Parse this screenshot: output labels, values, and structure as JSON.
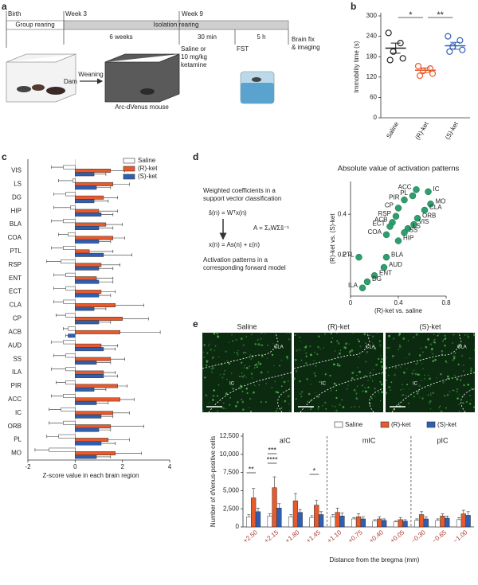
{
  "panel_labels": [
    "a",
    "b",
    "c",
    "d",
    "e"
  ],
  "timeline": {
    "markers": [
      "Birth",
      "Week 3",
      "Week 9"
    ],
    "phases": [
      "Group rearing",
      "Isolation rearing"
    ],
    "durations": [
      "6 weeks",
      "30 min",
      "5 h"
    ],
    "steps": [
      [
        "Saline or",
        "10 mg/kg",
        "ketamine"
      ],
      [
        "FST"
      ],
      [
        "Brain fix",
        "& imaging"
      ]
    ],
    "illustration": [
      "Weaning",
      "Dam",
      "Arc-dVenus mouse"
    ]
  },
  "model": {
    "lines": [
      "Weighted coefficients in a",
      "support vector classification",
      "ŝ(n) = Wᵀx(n)",
      "A = ΣₓWΣŝ⁻¹",
      "x(n) = As(n) + ε(n)",
      "Activation patterns in a",
      "corresponding forward model"
    ]
  },
  "images": {
    "titles": [
      "Saline",
      "(R)-ket",
      "(S)-ket"
    ],
    "regions": [
      "CLA",
      "IC"
    ]
  },
  "chart_data": [
    {
      "type": "dot",
      "ylabel": "Immobility time (s)",
      "categories": [
        "Saline",
        "(R)-ket",
        "(S)-ket"
      ],
      "colors": [
        "#222222",
        "#e8592b",
        "#2f5fb3"
      ],
      "values": [
        205,
        140,
        212
      ],
      "errors": [
        15,
        7,
        10
      ],
      "points": [
        [
          250,
          220,
          195,
          175,
          170
        ],
        [
          152,
          145,
          138,
          130,
          124
        ],
        [
          240,
          228,
          210,
          200,
          195
        ]
      ],
      "ylim": [
        0,
        300
      ],
      "yticks": [
        0,
        60,
        120,
        180,
        240,
        300
      ],
      "annotations": [
        "*",
        "**"
      ]
    },
    {
      "type": "bar",
      "orientation": "horizontal",
      "xlabel": "Z-score value in each brain region",
      "categories": [
        "VIS",
        "LS",
        "DG",
        "HIP",
        "BLA",
        "COA",
        "PTL",
        "RSP",
        "ENT",
        "ECT",
        "CLA",
        "CP",
        "ACB",
        "AUD",
        "SS",
        "ILA",
        "PIR",
        "ACC",
        "IC",
        "ORB",
        "PL",
        "MO"
      ],
      "series": [
        {
          "name": "Saline",
          "color": "#ffffff",
          "values": [
            -0.5,
            -0.1,
            -0.4,
            -0.2,
            -0.5,
            -0.3,
            -0.5,
            -0.6,
            -0.4,
            -0.4,
            -0.5,
            -0.4,
            -0.3,
            -0.5,
            -0.4,
            -0.4,
            -0.4,
            -0.5,
            -0.6,
            -0.5,
            -0.7,
            -1.1
          ],
          "errors": [
            0.5,
            0.6,
            0.5,
            0.7,
            0.5,
            0.4,
            0.5,
            0.6,
            0.5,
            0.5,
            0.4,
            0.4,
            0.2,
            0.5,
            0.5,
            0.6,
            0.4,
            0.5,
            0.5,
            0.6,
            0.5,
            0.6
          ]
        },
        {
          "name": "(R)-ket",
          "color": "#e8592b",
          "values": [
            1.5,
            1.6,
            1.2,
            1.0,
            1.3,
            1.6,
            0.6,
            1.1,
            0.9,
            1.1,
            1.7,
            2.0,
            1.9,
            1.1,
            1.5,
            1.2,
            1.8,
            1.9,
            1.6,
            1.5,
            1.4,
            1.7
          ],
          "errors": [
            0.6,
            0.7,
            0.6,
            0.8,
            0.7,
            0.5,
            1.0,
            0.8,
            0.7,
            0.6,
            1.2,
            1.1,
            1.7,
            0.7,
            0.6,
            0.5,
            0.4,
            0.6,
            0.7,
            1.4,
            0.9,
            1.1
          ]
        },
        {
          "name": "(S)-ket",
          "color": "#2f5fb3",
          "values": [
            0.8,
            0.9,
            0.8,
            1.1,
            1.0,
            1.0,
            1.2,
            1.0,
            1.0,
            1.0,
            0.8,
            1.0,
            -0.3,
            1.2,
            0.9,
            1.2,
            0.8,
            0.9,
            1.1,
            1.0,
            1.1,
            0.9
          ],
          "errors": [
            0.5,
            0.6,
            0.6,
            0.5,
            0.6,
            0.5,
            1.2,
            0.6,
            0.6,
            0.5,
            0.5,
            0.5,
            0.1,
            0.5,
            0.6,
            0.6,
            0.5,
            0.5,
            0.5,
            0.5,
            0.6,
            0.6
          ]
        }
      ],
      "xlim": [
        -2,
        4
      ],
      "xticks": [
        -2,
        0,
        2,
        4
      ],
      "legend": "upper right"
    },
    {
      "type": "scatter",
      "title": "Absolute value of activation patterns",
      "xlabel": "(R)-ket vs. saline",
      "ylabel": "(R)-ket vs. (S)-ket",
      "point_labels": [
        "ACC",
        "IC",
        "PL",
        "MO",
        "PIR",
        "CLA",
        "CP",
        "ORB",
        "RSP",
        "VIS",
        "ACB",
        "LS",
        "ECT",
        "SS",
        "COA",
        "HIP",
        "PTL",
        "BLA",
        "AUD",
        "ENT",
        "DG",
        "ILA"
      ],
      "x": [
        0.55,
        0.65,
        0.52,
        0.67,
        0.45,
        0.62,
        0.4,
        0.56,
        0.38,
        0.53,
        0.35,
        0.48,
        0.33,
        0.45,
        0.3,
        0.4,
        0.07,
        0.3,
        0.28,
        0.2,
        0.14,
        0.1
      ],
      "y": [
        0.52,
        0.51,
        0.49,
        0.45,
        0.47,
        0.42,
        0.43,
        0.38,
        0.39,
        0.35,
        0.36,
        0.33,
        0.34,
        0.31,
        0.3,
        0.27,
        0.19,
        0.19,
        0.14,
        0.1,
        0.07,
        0.04
      ],
      "color": "#2e9e6e",
      "xlim": [
        0,
        0.8
      ],
      "xticks": [
        0,
        0.4,
        0.8
      ],
      "ylim": [
        0,
        0.56
      ],
      "yticks": [
        0.2,
        0.4
      ]
    },
    {
      "type": "bar",
      "orientation": "vertical",
      "xlabel": "Distance from the bregma (mm)",
      "ylabel": "Number of dVenus-positive cells",
      "categories": [
        "+2.50",
        "+2.15",
        "+1.80",
        "+1.45",
        "+1.10",
        "+0.75",
        "+0.40",
        "+0.05",
        "−0.30",
        "−0.65",
        "−1.00"
      ],
      "series": [
        {
          "name": "Saline",
          "color": "#ffffff",
          "values": [
            1400,
            1500,
            1400,
            1300,
            1400,
            1100,
            800,
            700,
            900,
            900,
            1000
          ],
          "errors": [
            300,
            300,
            300,
            250,
            300,
            200,
            200,
            150,
            200,
            200,
            250
          ]
        },
        {
          "name": "(R)-ket",
          "color": "#e8592b",
          "values": [
            4000,
            5400,
            3600,
            3000,
            2000,
            1400,
            1100,
            1000,
            1700,
            1500,
            1800
          ],
          "errors": [
            1300,
            1500,
            1000,
            700,
            600,
            400,
            300,
            300,
            400,
            300,
            500
          ]
        },
        {
          "name": "(S)-ket",
          "color": "#2f5fb3",
          "values": [
            2100,
            2600,
            2000,
            1700,
            1500,
            1100,
            900,
            800,
            1100,
            1200,
            1600
          ],
          "errors": [
            500,
            600,
            400,
            400,
            400,
            300,
            200,
            200,
            300,
            300,
            500
          ]
        }
      ],
      "ylim": [
        0,
        12500
      ],
      "yticks": [
        0,
        {
          "value": 2500,
          "label": "2,500"
        },
        {
          "value": 5000,
          "label": "5,000"
        },
        {
          "value": 7500,
          "label": "7,500"
        },
        {
          "value": 10000,
          "label": "10,000"
        },
        {
          "value": 12500,
          "label": "12,500"
        }
      ],
      "regions": [
        "aIC",
        "mIC",
        "pIC"
      ],
      "annotations": [
        "**",
        "****",
        "***",
        "*"
      ],
      "legend": "top"
    }
  ]
}
